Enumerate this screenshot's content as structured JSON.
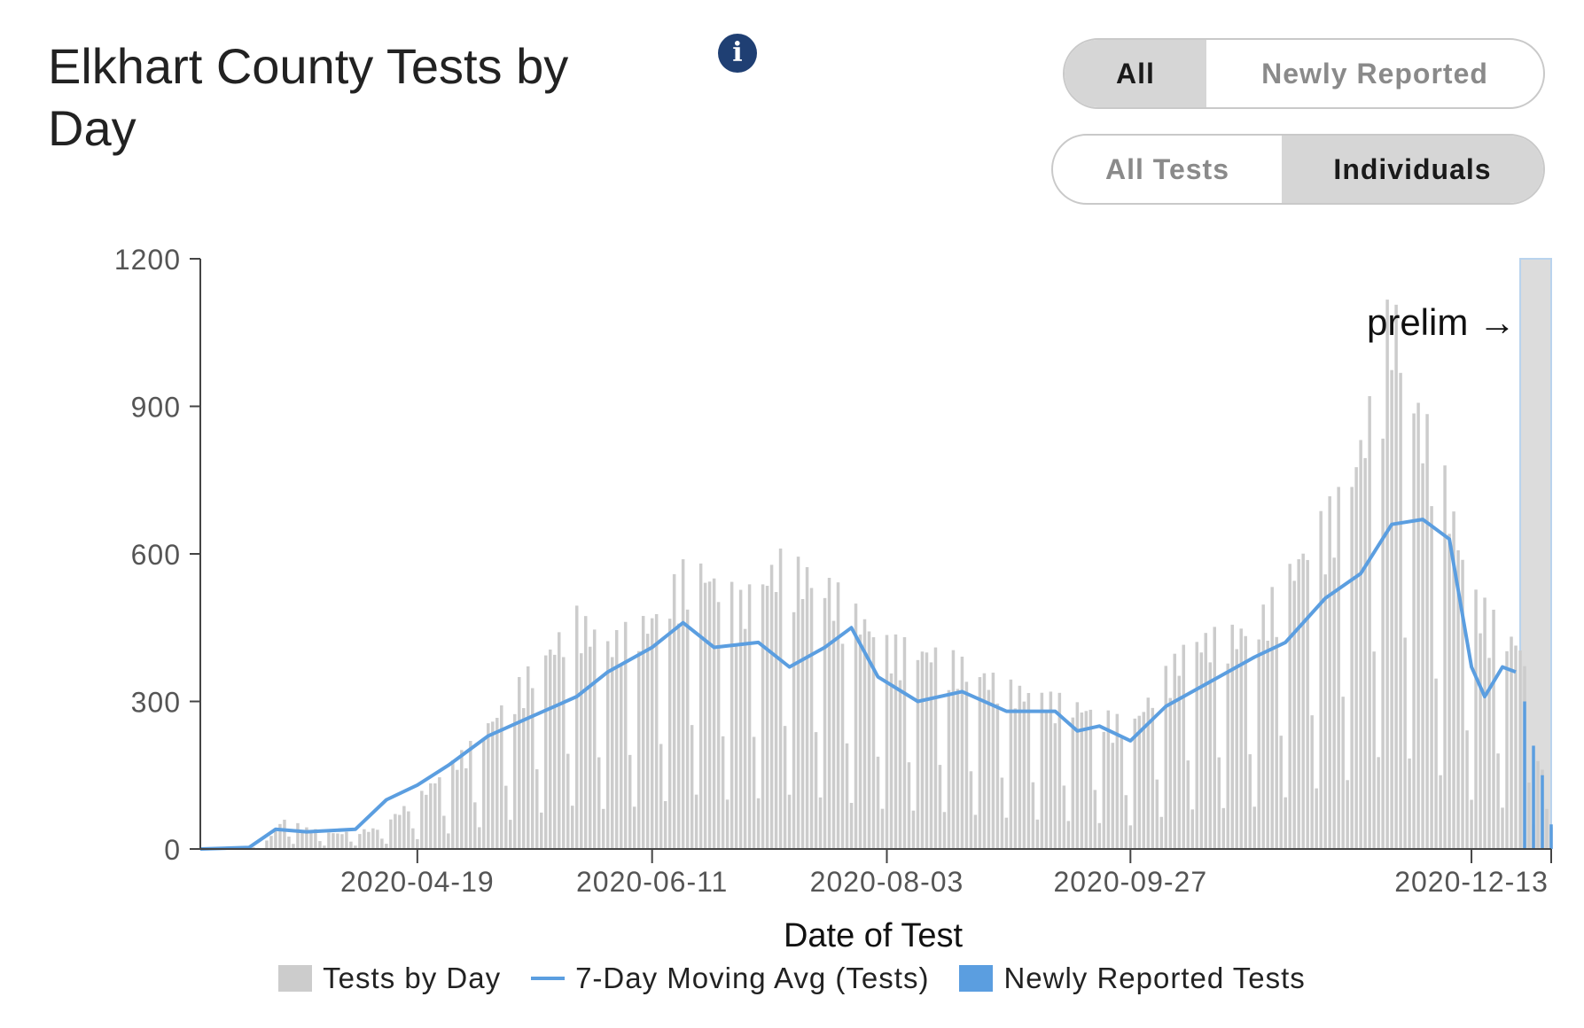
{
  "page": {
    "title": "Elkhart County Tests by Day",
    "info_icon": "info-icon",
    "toggle_reporting": {
      "options": [
        "All",
        "Newly Reported"
      ],
      "selected": "All"
    },
    "toggle_type": {
      "options": [
        "All Tests",
        "Individuals"
      ],
      "selected": "Individuals"
    }
  },
  "chart_data": {
    "type": "bar",
    "xlabel": "Date of Test",
    "ylabel": "",
    "ylim": [
      0,
      1200
    ],
    "yticks": [
      0,
      300,
      600,
      900,
      1200
    ],
    "x_start": "2020-03-01",
    "x_end": "2020-12-31",
    "x_tick_labels": [
      "2020-04-19",
      "2020-06-11",
      "2020-08-03",
      "2020-09-27",
      "2020-12-13"
    ],
    "grid": false,
    "legend_position": "bottom",
    "colors": {
      "bars": "#cccccc",
      "line": "#5b9ee0",
      "newly": "#5b9ee0",
      "prelim_band": "#dcdcdc"
    },
    "annotation": "prelim →",
    "prelim_start": "2020-12-24",
    "series": [
      {
        "name": "Tests by Day",
        "type": "bar",
        "x": [
          "2020-03-01",
          "2020-03-15",
          "2020-03-20",
          "2020-03-25",
          "2020-04-01",
          "2020-04-10",
          "2020-04-19",
          "2020-05-01",
          "2020-05-15",
          "2020-05-25",
          "2020-06-01",
          "2020-06-11",
          "2020-06-20",
          "2020-07-01",
          "2020-07-10",
          "2020-07-20",
          "2020-08-03",
          "2020-08-15",
          "2020-09-01",
          "2020-09-15",
          "2020-09-27",
          "2020-10-10",
          "2020-10-25",
          "2020-11-05",
          "2020-11-15",
          "2020-11-20",
          "2020-11-25",
          "2020-12-01",
          "2020-12-06",
          "2020-12-13",
          "2020-12-20",
          "2020-12-24",
          "2020-12-28",
          "2020-12-31"
        ],
        "values": [
          0,
          5,
          60,
          40,
          30,
          40,
          100,
          200,
          350,
          450,
          400,
          450,
          560,
          480,
          560,
          520,
          400,
          380,
          310,
          280,
          240,
          400,
          430,
          580,
          700,
          850,
          1060,
          850,
          750,
          500,
          420,
          400,
          200,
          40
        ]
      },
      {
        "name": "7-Day Moving Avg (Tests)",
        "type": "line",
        "x": [
          "2020-03-01",
          "2020-03-12",
          "2020-03-18",
          "2020-03-25",
          "2020-04-05",
          "2020-04-12",
          "2020-04-19",
          "2020-04-26",
          "2020-05-05",
          "2020-05-15",
          "2020-05-25",
          "2020-06-01",
          "2020-06-11",
          "2020-06-18",
          "2020-06-25",
          "2020-07-05",
          "2020-07-12",
          "2020-07-20",
          "2020-07-26",
          "2020-08-01",
          "2020-08-10",
          "2020-08-20",
          "2020-08-30",
          "2020-09-10",
          "2020-09-15",
          "2020-09-20",
          "2020-09-27",
          "2020-10-05",
          "2020-10-15",
          "2020-10-25",
          "2020-11-01",
          "2020-11-10",
          "2020-11-18",
          "2020-11-25",
          "2020-12-02",
          "2020-12-08",
          "2020-12-13",
          "2020-12-16",
          "2020-12-20",
          "2020-12-23"
        ],
        "values": [
          0,
          3,
          40,
          35,
          40,
          100,
          130,
          170,
          230,
          270,
          310,
          360,
          410,
          460,
          410,
          420,
          370,
          410,
          450,
          350,
          300,
          320,
          280,
          280,
          240,
          250,
          220,
          290,
          340,
          390,
          420,
          510,
          560,
          660,
          670,
          630,
          370,
          310,
          370,
          360
        ]
      },
      {
        "name": "Newly Reported Tests",
        "type": "bar",
        "x": [
          "2020-12-25",
          "2020-12-27",
          "2020-12-29",
          "2020-12-31"
        ],
        "values": [
          300,
          210,
          150,
          50
        ]
      }
    ]
  }
}
